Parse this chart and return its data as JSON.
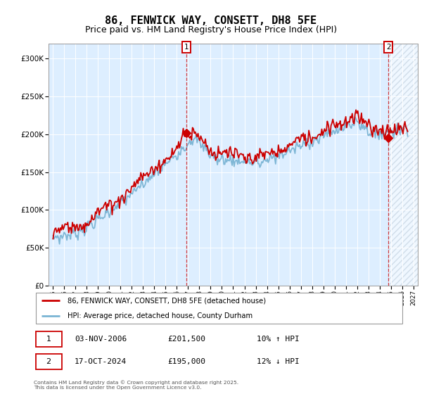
{
  "title": "86, FENWICK WAY, CONSETT, DH8 5FE",
  "subtitle": "Price paid vs. HM Land Registry's House Price Index (HPI)",
  "ylim": [
    0,
    320000
  ],
  "yticks": [
    0,
    50000,
    100000,
    150000,
    200000,
    250000,
    300000
  ],
  "ytick_labels": [
    "£0",
    "£50K",
    "£100K",
    "£150K",
    "£200K",
    "£250K",
    "£300K"
  ],
  "x_start_year": 1995,
  "x_end_year": 2027,
  "marker1_x": 2006.84,
  "marker1_price": 201500,
  "marker2_x": 2024.79,
  "marker2_price": 195000,
  "legend_line1": "86, FENWICK WAY, CONSETT, DH8 5FE (detached house)",
  "legend_line2": "HPI: Average price, detached house, County Durham",
  "marker1_info_date": "03-NOV-2006",
  "marker1_info_price": "£201,500",
  "marker1_info_hpi": "10% ↑ HPI",
  "marker2_info_date": "17-OCT-2024",
  "marker2_info_price": "£195,000",
  "marker2_info_hpi": "12% ↓ HPI",
  "footer": "Contains HM Land Registry data © Crown copyright and database right 2025.\nThis data is licensed under the Open Government Licence v3.0.",
  "line_color_red": "#cc0000",
  "line_color_blue": "#7ab4d4",
  "bg_color": "#ddeeff",
  "grid_color": "#ffffff",
  "title_fontsize": 11,
  "subtitle_fontsize": 9
}
